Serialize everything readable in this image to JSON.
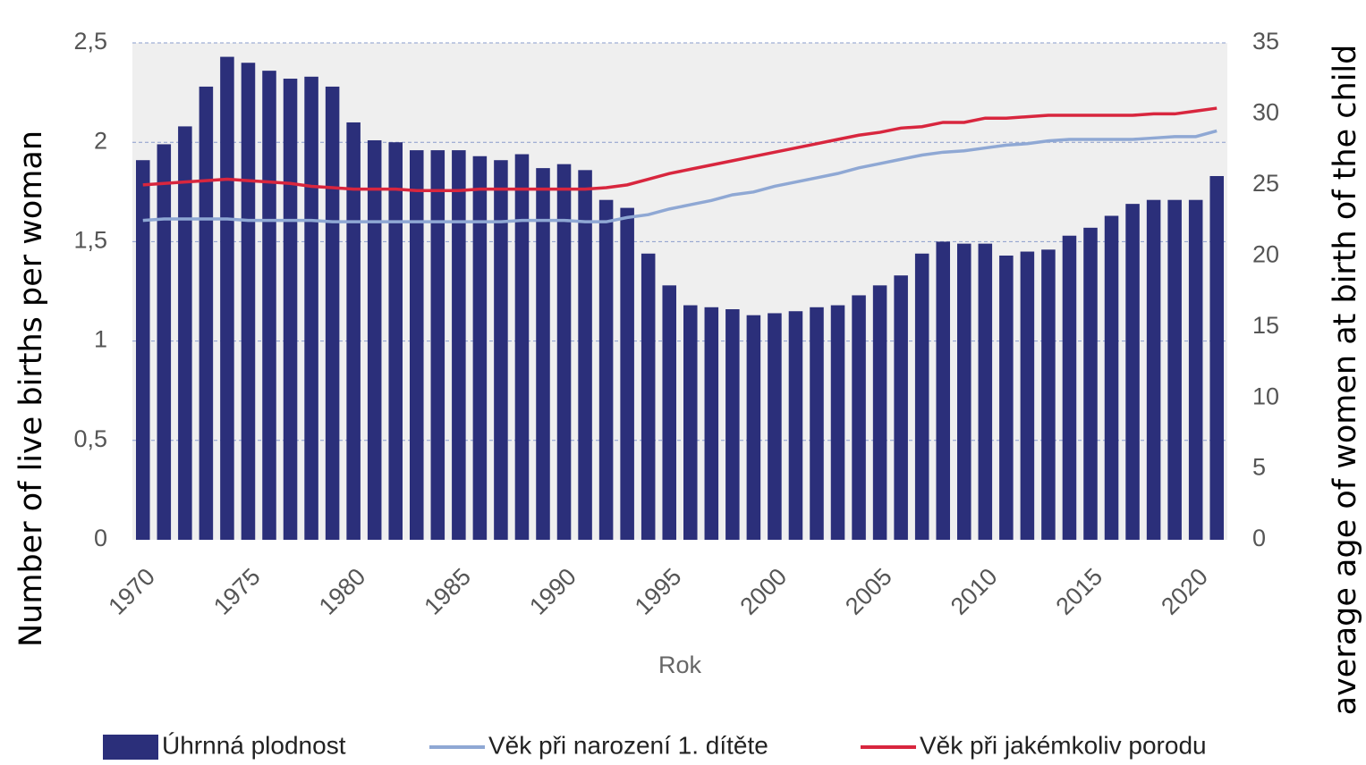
{
  "chart_data": {
    "type": "bar-line",
    "x_label": "Rok",
    "y_label": "Number of live births per woman",
    "y2_label": "average age of women at birth of the child",
    "categories": [
      "1970",
      null,
      null,
      null,
      null,
      "1975",
      null,
      null,
      null,
      null,
      "1980",
      null,
      null,
      null,
      null,
      "1985",
      null,
      null,
      null,
      null,
      "1990",
      null,
      null,
      null,
      null,
      "1995",
      null,
      null,
      null,
      null,
      "2000",
      null,
      null,
      null,
      null,
      "2005",
      null,
      null,
      null,
      null,
      "2010",
      null,
      null,
      null,
      null,
      "2015",
      null,
      null,
      null,
      null,
      "2020",
      null
    ],
    "ylim": [
      0,
      2.5
    ],
    "yticks": [
      0,
      {
        "value": 0.5,
        "label": "0,5"
      },
      1,
      {
        "value": 1.5,
        "label": "1,5"
      },
      2,
      {
        "value": 2.5,
        "label": "2,5"
      }
    ],
    "y2lim": [
      0,
      35
    ],
    "y2ticks": [
      0,
      5,
      10,
      15,
      20,
      25,
      30,
      35
    ],
    "grid": true,
    "series": [
      {
        "name": "Úhrnná plodnost",
        "type": "bar",
        "color": "#2b2f7a",
        "values": [
          1.91,
          1.99,
          2.08,
          2.28,
          2.43,
          2.4,
          2.36,
          2.32,
          2.33,
          2.28,
          2.1,
          2.01,
          2.0,
          1.96,
          1.96,
          1.96,
          1.93,
          1.91,
          1.94,
          1.87,
          1.89,
          1.86,
          1.71,
          1.67,
          1.44,
          1.28,
          1.18,
          1.17,
          1.16,
          1.13,
          1.14,
          1.15,
          1.17,
          1.18,
          1.23,
          1.28,
          1.33,
          1.44,
          1.5,
          1.49,
          1.49,
          1.43,
          1.45,
          1.46,
          1.53,
          1.57,
          1.63,
          1.69,
          1.71,
          1.71,
          1.71,
          1.83
        ]
      },
      {
        "name": "Věk při narození 1. dítěte",
        "type": "line",
        "axis": "y2",
        "color": "#8fa8d4",
        "values": [
          22.5,
          22.6,
          22.6,
          22.6,
          22.6,
          22.5,
          22.5,
          22.5,
          22.5,
          22.4,
          22.4,
          22.4,
          22.4,
          22.4,
          22.4,
          22.4,
          22.4,
          22.4,
          22.5,
          22.5,
          22.5,
          22.4,
          22.4,
          22.7,
          22.9,
          23.3,
          23.6,
          23.9,
          24.3,
          24.5,
          24.9,
          25.2,
          25.5,
          25.8,
          26.2,
          26.5,
          26.8,
          27.1,
          27.3,
          27.4,
          27.6,
          27.8,
          27.9,
          28.1,
          28.2,
          28.2,
          28.2,
          28.2,
          28.3,
          28.4,
          28.4,
          28.8
        ]
      },
      {
        "name": "Věk při jakémkoliv porodu",
        "type": "line",
        "axis": "y2",
        "color": "#d8263e",
        "values": [
          25.0,
          25.1,
          25.2,
          25.3,
          25.4,
          25.3,
          25.2,
          25.1,
          24.9,
          24.8,
          24.7,
          24.7,
          24.7,
          24.6,
          24.6,
          24.6,
          24.7,
          24.7,
          24.7,
          24.7,
          24.7,
          24.7,
          24.8,
          25.0,
          25.4,
          25.8,
          26.1,
          26.4,
          26.7,
          27.0,
          27.3,
          27.6,
          27.9,
          28.2,
          28.5,
          28.7,
          29.0,
          29.1,
          29.4,
          29.4,
          29.7,
          29.7,
          29.8,
          29.9,
          29.9,
          29.9,
          29.9,
          29.9,
          30.0,
          30.0,
          30.2,
          30.4
        ]
      }
    ]
  }
}
